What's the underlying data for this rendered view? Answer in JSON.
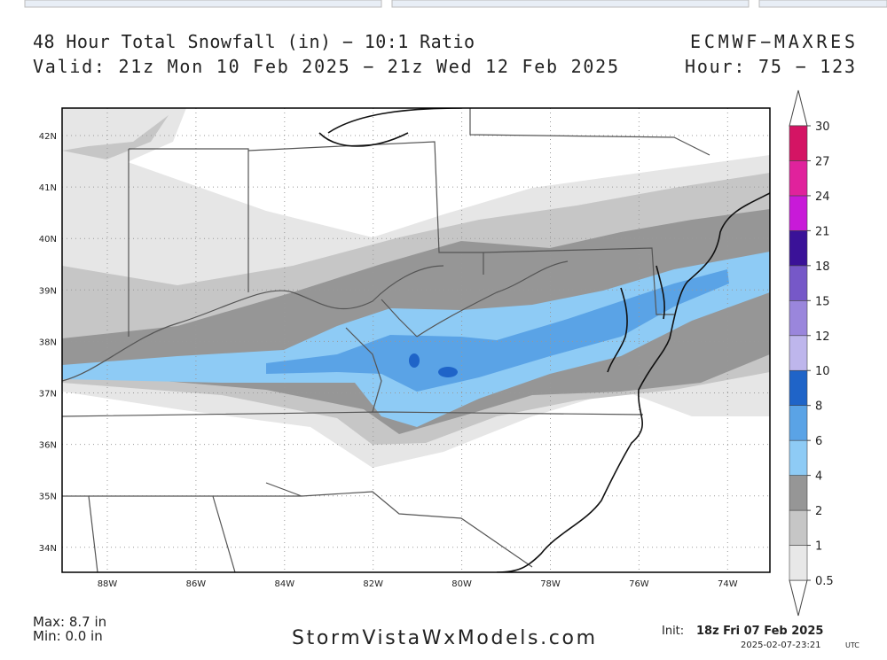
{
  "header": {
    "title": "48 Hour Total Snowfall (in) − 10:1 Ratio",
    "valid": "Valid: 21z Mon 10 Feb 2025 − 21z Wed 12 Feb 2025",
    "model": "ECMWF−MAXRES",
    "hour": "Hour: 75 − 123"
  },
  "map": {
    "lat_labels": [
      "42N",
      "41N",
      "40N",
      "39N",
      "38N",
      "37N",
      "36N",
      "35N",
      "34N"
    ],
    "lon_labels": [
      "88W",
      "86W",
      "84W",
      "82W",
      "80W",
      "78W",
      "76W",
      "74W"
    ]
  },
  "colorbar": {
    "levels": [
      0.5,
      1,
      2,
      4,
      6,
      8,
      10,
      12,
      15,
      18,
      21,
      24,
      27,
      30
    ],
    "colors": [
      "#e8e8e8",
      "#c6c6c6",
      "#969696",
      "#8ecbf5",
      "#5aa3e6",
      "#1f64c8",
      "#beb6ec",
      "#9a86dc",
      "#7658c8",
      "#3a1298",
      "#c81ad8",
      "#e0229c",
      "#d41464"
    ]
  },
  "footer": {
    "max": "Max: 8.7 in",
    "min": "Min: 0.0 in",
    "site": "StormVistaWxModels.com",
    "init_label": "Init:",
    "init": "18z Fri 07 Feb 2025",
    "timestamp": "2025-02-07-23:21",
    "timezone": "UTC"
  }
}
